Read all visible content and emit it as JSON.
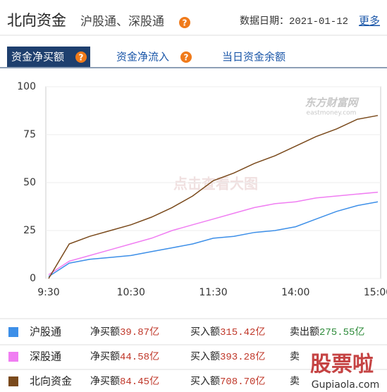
{
  "header": {
    "title": "北向资金",
    "subtitle": "沪股通、深股通",
    "help": "?",
    "date_label": "数据日期：",
    "date": "2021-01-12",
    "more": "更多"
  },
  "tabs": [
    {
      "label": "资金净买额",
      "help": "?"
    },
    {
      "label": "资金净流入",
      "help": "?"
    },
    {
      "label": "当日资金余额"
    }
  ],
  "chart_data": {
    "type": "line",
    "categories": [
      "9:30",
      null,
      null,
      null,
      "10:30",
      null,
      null,
      null,
      "11:30",
      null,
      null,
      null,
      "14:00",
      null,
      null,
      null,
      "15:00"
    ],
    "series": [
      {
        "name": "沪股通",
        "color": "#3d8fe8",
        "values": [
          1,
          8,
          10,
          11,
          12,
          14,
          16,
          18,
          21,
          22,
          24,
          25,
          27,
          31,
          35,
          38,
          40
        ]
      },
      {
        "name": "深股通",
        "color": "#f07ef2",
        "values": [
          2,
          9,
          12,
          15,
          18,
          21,
          25,
          28,
          31,
          34,
          37,
          39,
          40,
          42,
          43,
          44,
          45
        ]
      },
      {
        "name": "北向资金",
        "color": "#7a4a1c",
        "values": [
          0,
          18,
          22,
          25,
          28,
          32,
          37,
          43,
          51,
          55,
          60,
          64,
          69,
          74,
          78,
          83,
          85
        ]
      }
    ],
    "ylim": [
      0,
      100
    ],
    "yticks": [
      0,
      25,
      50,
      75,
      100
    ],
    "watermark": "东方财富网",
    "watermark_sub": "eastmoney.com",
    "overlay": "点击查看大图"
  },
  "summary": {
    "rows": [
      {
        "net_label": "净买额",
        "net": "39.87亿",
        "buy_label": "买入额",
        "buy": "315.42亿",
        "sell_label": "卖出额",
        "sell": "275.55亿"
      },
      {
        "net_label": "净买额",
        "net": "44.58亿",
        "buy_label": "买入额",
        "buy": "393.28亿",
        "sell_label": "卖"
      },
      {
        "net_label": "净买额",
        "net": "84.45亿",
        "buy_label": "买入额",
        "buy": "708.70亿",
        "sell_label": "卖"
      }
    ],
    "watermark": "股票啦",
    "watermark_sub": "Gupiaola.com"
  }
}
